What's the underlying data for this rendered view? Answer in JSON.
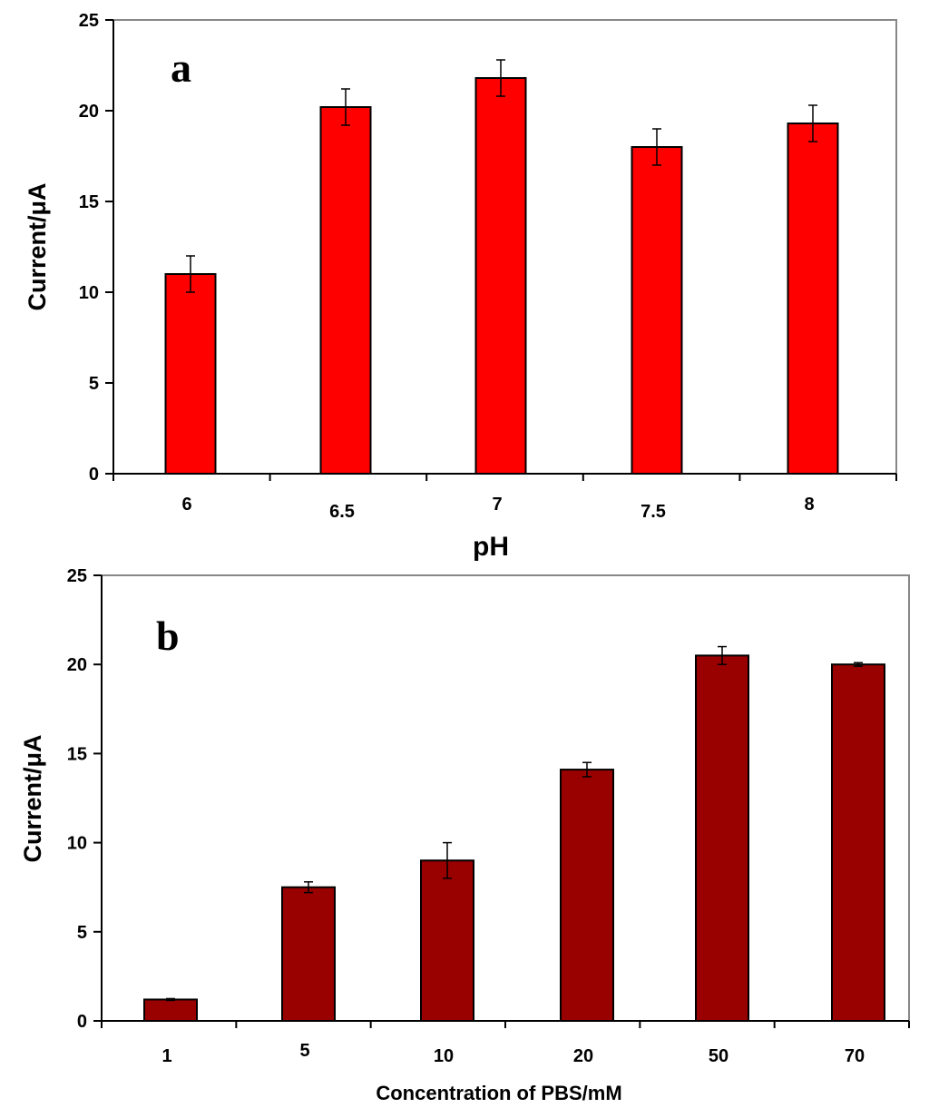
{
  "chart_data": [
    {
      "type": "bar",
      "panel_label": "a",
      "title": "",
      "xlabel": "pH",
      "ylabel": "Current/μA",
      "categories": [
        "6",
        "6.5",
        "7",
        "7.5",
        "8"
      ],
      "values": [
        11.0,
        20.2,
        21.8,
        18.0,
        19.3
      ],
      "errors": [
        1.0,
        1.0,
        1.0,
        1.0,
        1.0
      ],
      "ylim": [
        0,
        25
      ],
      "yticks": [
        "0",
        "5",
        "10",
        "15",
        "20",
        "25"
      ],
      "bar_color": "#ff0000",
      "grid": false
    },
    {
      "type": "bar",
      "panel_label": "b",
      "title": "",
      "xlabel": "Concentration of PBS/mM",
      "ylabel": "Current/μA",
      "categories": [
        "1",
        "5",
        "10",
        "20",
        "50",
        "70"
      ],
      "values": [
        1.2,
        7.5,
        9.0,
        14.1,
        20.5,
        20.0
      ],
      "errors": [
        0.05,
        0.3,
        1.0,
        0.4,
        0.5,
        0.1
      ],
      "ylim": [
        0,
        25
      ],
      "yticks": [
        "0",
        "5",
        "10",
        "15",
        "20",
        "25"
      ],
      "bar_color": "#990000",
      "grid": false
    }
  ]
}
